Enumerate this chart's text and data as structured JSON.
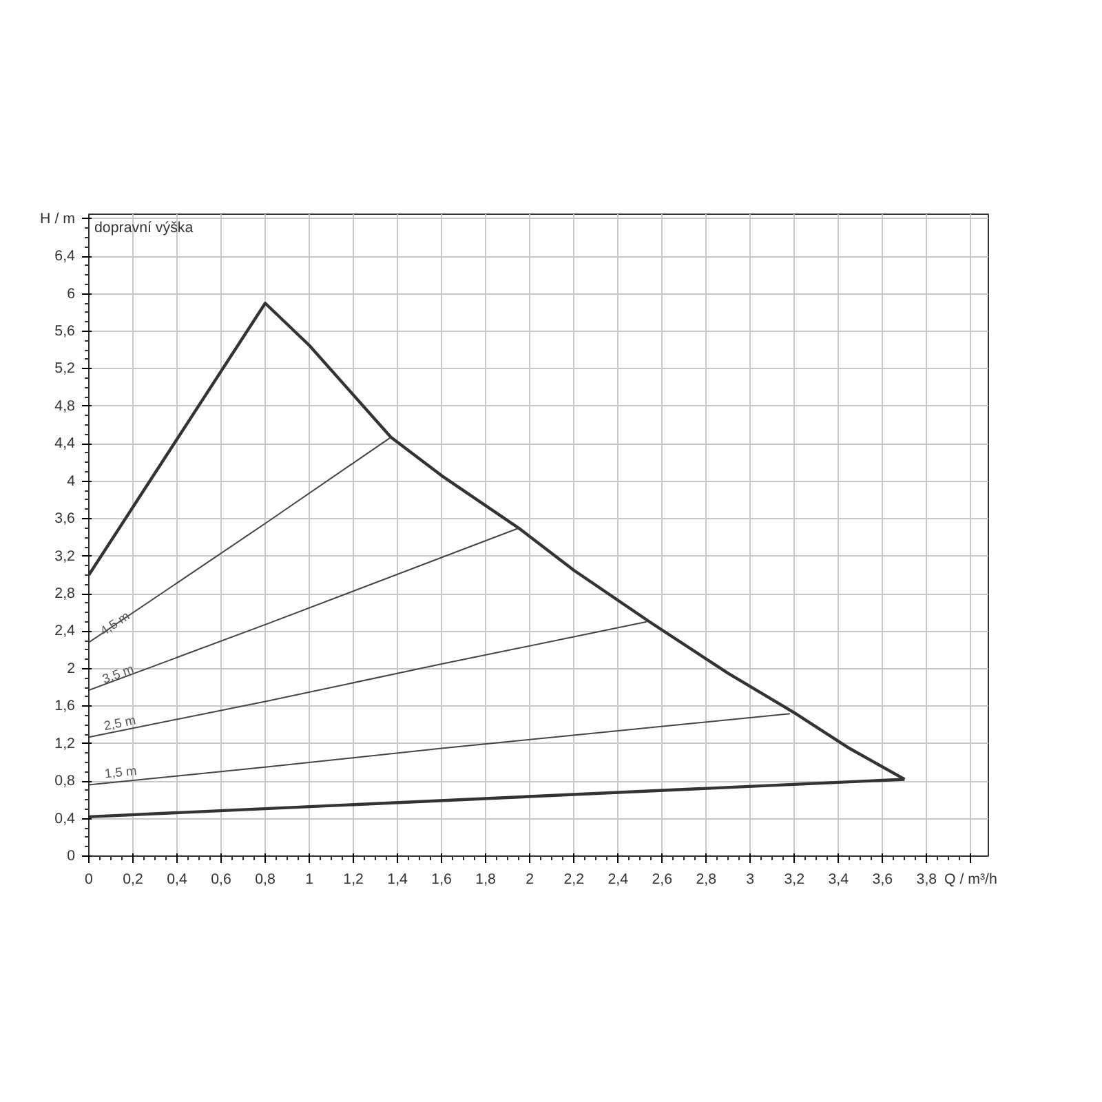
{
  "chart_data": {
    "type": "line",
    "ylabel": "dopravní výška",
    "xlim": [
      0,
      4.08
    ],
    "ylim": [
      0,
      6.85
    ],
    "xticks": [
      0,
      {
        "value": 0.2,
        "label": "0,2"
      },
      {
        "value": 0.4,
        "label": "0,4"
      },
      {
        "value": 0.6,
        "label": "0,6"
      },
      {
        "value": 0.8,
        "label": "0,8"
      },
      1,
      {
        "value": 1.2,
        "label": "1,2"
      },
      {
        "value": 1.4,
        "label": "1,4"
      },
      {
        "value": 1.6,
        "label": "1,6"
      },
      {
        "value": 1.8,
        "label": "1,8"
      },
      2,
      {
        "value": 2.2,
        "label": "2,2"
      },
      {
        "value": 2.4,
        "label": "2,4"
      },
      {
        "value": 2.6,
        "label": "2,6"
      },
      {
        "value": 2.8,
        "label": "2,8"
      },
      3,
      {
        "value": 3.2,
        "label": "3,2"
      },
      {
        "value": 3.4,
        "label": "3,4"
      },
      {
        "value": 3.6,
        "label": "3,6"
      },
      {
        "value": 3.8,
        "label": "3,8"
      },
      {
        "value": 4.0,
        "label": "Q / m³/h"
      }
    ],
    "yticks": [
      0,
      {
        "value": 0.4,
        "label": "0,4"
      },
      {
        "value": 0.8,
        "label": "0,8"
      },
      {
        "value": 1.2,
        "label": "1,2"
      },
      {
        "value": 1.6,
        "label": "1,6"
      },
      2,
      {
        "value": 2.4,
        "label": "2,4"
      },
      {
        "value": 2.8,
        "label": "2,8"
      },
      {
        "value": 3.2,
        "label": "3,2"
      },
      {
        "value": 3.6,
        "label": "3,6"
      },
      4,
      {
        "value": 4.4,
        "label": "4,4"
      },
      {
        "value": 4.8,
        "label": "4,8"
      },
      {
        "value": 5.2,
        "label": "5,2"
      },
      {
        "value": 5.6,
        "label": "5,6"
      },
      6,
      {
        "value": 6.4,
        "label": "6,4"
      },
      {
        "value": 6.8,
        "label": "H / m"
      }
    ],
    "grid": true,
    "line_style": "solid",
    "series": [
      {
        "color": "#333333",
        "x": [
          0,
          0.8,
          1.0,
          1.37,
          1.6,
          1.95,
          2.2,
          2.55,
          2.9,
          3.2,
          3.45,
          3.7
        ],
        "values": [
          3.0,
          5.9,
          5.45,
          4.47,
          4.06,
          3.5,
          3.05,
          2.49,
          1.95,
          1.53,
          1.15,
          0.82
        ]
      },
      {
        "color": "#333333",
        "x": [
          0,
          3.7
        ],
        "values": [
          0.42,
          0.82
        ]
      },
      {
        "name": "4,5 m",
        "color": "#444444",
        "x": [
          0,
          0.8,
          1.37
        ],
        "values": [
          2.28,
          3.55,
          4.47
        ]
      },
      {
        "name": "3,5 m",
        "color": "#444444",
        "x": [
          0,
          0.8,
          1.95
        ],
        "values": [
          1.77,
          2.47,
          3.5
        ]
      },
      {
        "name": "2,5 m",
        "color": "#444444",
        "x": [
          0,
          0.8,
          1.6,
          2.53
        ],
        "values": [
          1.27,
          1.65,
          2.05,
          2.5
        ]
      },
      {
        "name": "1,5 m",
        "color": "#444444",
        "x": [
          0,
          0.8,
          1.6,
          3.18
        ],
        "values": [
          0.76,
          0.95,
          1.15,
          1.52
        ]
      }
    ]
  }
}
